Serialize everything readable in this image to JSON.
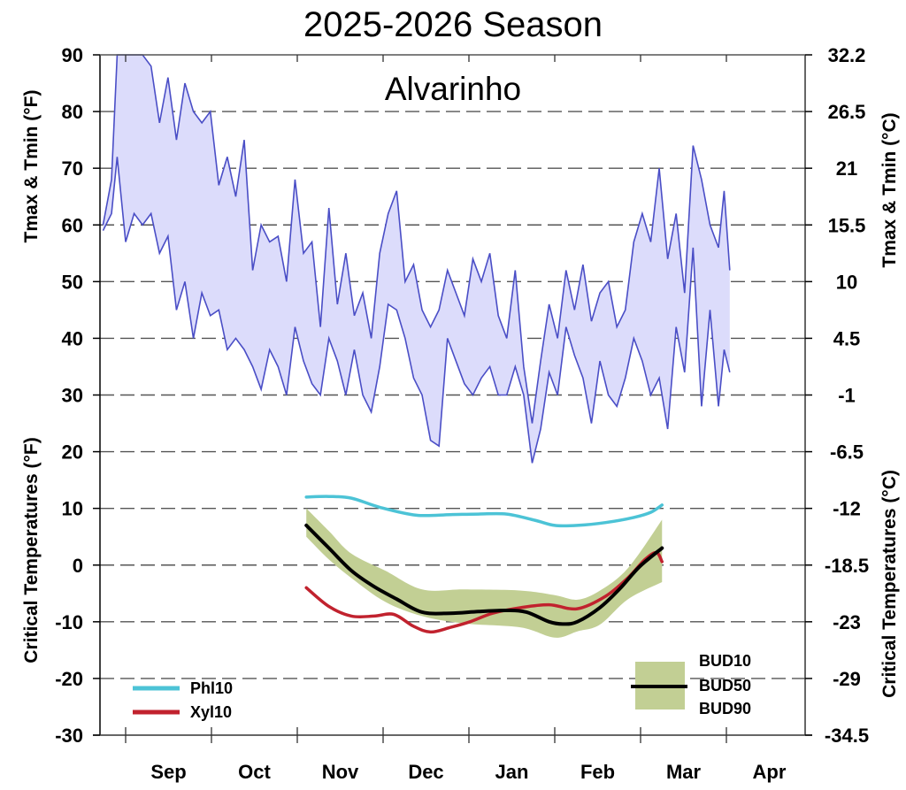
{
  "chart_data": {
    "type": "line",
    "title": "2025-2026 Season",
    "subtitle": "Alvarinho",
    "x_unit": "days since Sep 1",
    "xlim": [
      -9,
      242
    ],
    "x_ticks": [
      "Sep",
      "Oct",
      "Nov",
      "Dec",
      "Jan",
      "Feb",
      "Mar",
      "Apr"
    ],
    "ylim": [
      -30,
      90
    ],
    "y_ticks_left": [
      "90",
      "80",
      "70",
      "60",
      "50",
      "40",
      "30",
      "20",
      "10",
      "0",
      "-10",
      "-20",
      "-30"
    ],
    "y_ticks_right": [
      "32.2",
      "26.5",
      "21",
      "15.5",
      "10",
      "4.5",
      "-1",
      "-6.5",
      "-12",
      "-18.5",
      "-23",
      "-29",
      "-34.5"
    ],
    "ylabel_left_top": "Tmax & Tmin (°F)",
    "ylabel_left_bottom": "Critical Temperatures (°F)",
    "ylabel_right_top": "Tmax & Tmin (°C)",
    "ylabel_right_bottom": "Critical Temperatures (°C)",
    "grid": true,
    "temperature": {
      "x": [
        -8,
        -5,
        -3,
        0,
        3,
        6,
        9,
        12,
        15,
        18,
        21,
        24,
        27,
        30,
        33,
        36,
        39,
        42,
        45,
        48,
        51,
        54,
        57,
        60,
        63,
        66,
        69,
        72,
        75,
        78,
        81,
        84,
        87,
        90,
        93,
        96,
        99,
        102,
        105,
        108,
        111,
        114,
        117,
        120,
        123,
        126,
        129,
        132,
        135,
        138,
        141,
        144,
        147,
        150,
        153,
        156,
        159,
        162,
        165,
        168,
        171,
        174,
        177,
        180,
        183,
        186,
        189,
        192,
        195,
        198,
        201,
        204,
        207,
        210,
        212,
        214
      ],
      "tmax": [
        60,
        68,
        92,
        92,
        90,
        92,
        88,
        78,
        86,
        75,
        85,
        80,
        78,
        80,
        67,
        72,
        65,
        75,
        52,
        60,
        57,
        58,
        50,
        68,
        55,
        57,
        42,
        63,
        46,
        55,
        44,
        48,
        40,
        55,
        62,
        66,
        50,
        53,
        45,
        42,
        45,
        52,
        48,
        44,
        54,
        50,
        55,
        44,
        40,
        52,
        35,
        25,
        36,
        46,
        40,
        52,
        45,
        53,
        43,
        48,
        50,
        42,
        45,
        57,
        62,
        57,
        70,
        54,
        62,
        48,
        74,
        68,
        60,
        56,
        66,
        52
      ],
      "tmin": [
        59,
        62,
        72,
        57,
        62,
        60,
        62,
        55,
        58,
        45,
        50,
        40,
        48,
        44,
        45,
        38,
        40,
        38,
        35,
        31,
        38,
        35,
        30,
        42,
        36,
        32,
        30,
        40,
        36,
        30,
        38,
        30,
        27,
        35,
        46,
        45,
        40,
        33,
        30,
        22,
        21,
        40,
        36,
        32,
        30,
        33,
        35,
        30,
        30,
        35,
        30,
        18,
        24,
        34,
        30,
        42,
        37,
        33,
        25,
        36,
        30,
        28,
        33,
        40,
        36,
        30,
        33,
        24,
        42,
        34,
        56,
        28,
        45,
        28,
        38,
        34
      ]
    },
    "series": [
      {
        "name": "Phl10",
        "color": "#4cc3d6",
        "x": [
          64,
          72,
          80,
          90,
          103,
          115,
          125,
          135,
          145,
          152,
          160,
          170,
          180,
          186,
          190
        ],
        "values": [
          12,
          12.1,
          11.8,
          10.2,
          8.8,
          8.9,
          9,
          9,
          7.9,
          7,
          7,
          7.5,
          8.4,
          9.3,
          10.6
        ]
      },
      {
        "name": "Xyl10",
        "color": "#c1222e",
        "x": [
          64,
          72,
          80,
          88,
          95,
          102,
          108,
          115,
          122,
          130,
          140,
          150,
          160,
          170,
          178,
          184,
          188,
          190
        ],
        "values": [
          -4,
          -7.3,
          -9,
          -9,
          -8.7,
          -10.8,
          -11.8,
          -11,
          -10,
          -8.5,
          -7.5,
          -7,
          -7.7,
          -5.5,
          -2.2,
          1,
          2.2,
          0.6
        ]
      },
      {
        "name": "BUD50",
        "color": "#000000",
        "x": [
          64,
          72,
          80,
          88,
          96,
          105,
          115,
          125,
          135,
          142,
          150,
          155,
          160,
          168,
          175,
          182,
          190
        ],
        "values": [
          7,
          3,
          -1,
          -3.8,
          -6,
          -8.3,
          -8.5,
          -8.2,
          -8,
          -8.3,
          -10,
          -10.4,
          -10,
          -7.5,
          -4.2,
          -0.3,
          3
        ]
      }
    ],
    "band": {
      "name_upper": "BUD10",
      "name_lower": "BUD90",
      "color": "#c2cf94",
      "x": [
        64,
        72,
        80,
        92,
        105,
        120,
        140,
        152,
        160,
        168,
        178,
        190
      ],
      "upper": [
        10,
        6,
        2,
        -1,
        -4.3,
        -4.3,
        -4.5,
        -5.3,
        -6.1,
        -4.5,
        -0.5,
        8
      ],
      "lower": [
        5,
        1,
        -2.3,
        -6.5,
        -9,
        -10.3,
        -11,
        -12.8,
        -11.7,
        -10.5,
        -6,
        -3
      ]
    },
    "legend": {
      "phl": "Phl10",
      "xyl": "Xyl10",
      "bud10": "BUD10",
      "bud50": "BUD50",
      "bud90": "BUD90",
      "placement": "bottom-left and bottom-right"
    },
    "colors": {
      "temp_line": "#4a4ec6",
      "temp_fill": "#dcdcfb"
    }
  }
}
